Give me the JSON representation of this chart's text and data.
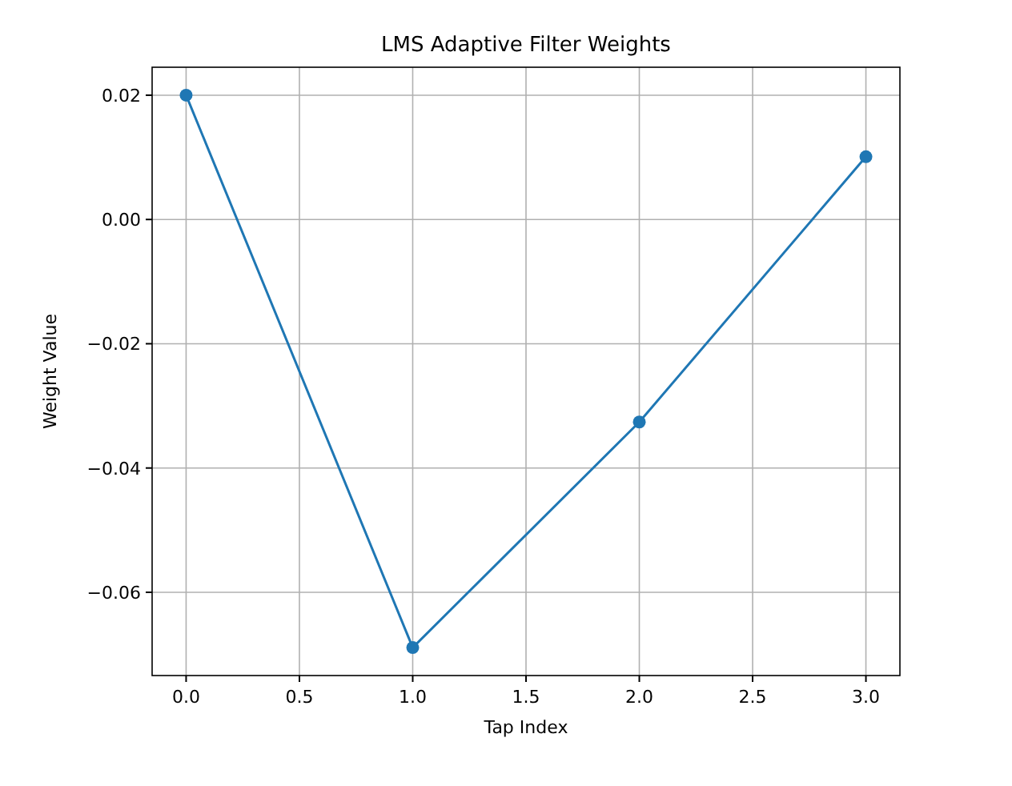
{
  "chart_data": {
    "type": "line",
    "title": "LMS Adaptive Filter Weights",
    "xlabel": "Tap Index",
    "ylabel": "Weight Value",
    "x": [
      0,
      1,
      2,
      3
    ],
    "series": [
      {
        "color": "#1f77b4",
        "values": [
          0.02,
          -0.0689,
          -0.0326,
          0.0101
        ]
      }
    ],
    "xlim": [
      -0.15,
      3.15
    ],
    "xticks": [
      {
        "value": 0,
        "label": "0.0"
      },
      {
        "value": 0.5,
        "label": "0.5"
      },
      {
        "value": 1,
        "label": "1.0"
      },
      {
        "value": 1.5,
        "label": "1.5"
      },
      {
        "value": 2,
        "label": "2.0"
      },
      {
        "value": 2.5,
        "label": "2.5"
      },
      {
        "value": 3,
        "label": "3.0"
      }
    ],
    "ylim": [
      -0.0734,
      0.0245
    ],
    "yticks": [
      {
        "value": -0.06,
        "label": "−0.06"
      },
      {
        "value": -0.04,
        "label": "−0.04"
      },
      {
        "value": -0.02,
        "label": "−0.02"
      },
      {
        "value": 0,
        "label": "0.00"
      },
      {
        "value": 0.02,
        "label": "0.02"
      }
    ],
    "grid": true,
    "marker": "circle",
    "line_style": "solid"
  }
}
